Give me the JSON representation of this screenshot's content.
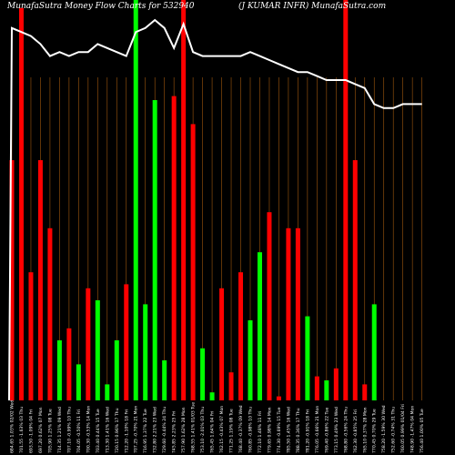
{
  "header": {
    "left": "MunafaSutra  Money Flow  Charts for 532940",
    "right": "(J KUMAR INFR) MunafaSutra.com"
  },
  "chart_data": {
    "type": "bar",
    "title": "MunafaSutra  Money Flow  Charts for 532940",
    "subtitle": "(J KUMAR INFR) MunafaSutra.com",
    "ylim": [
      0,
      100
    ],
    "grid": false,
    "colors": {
      "up": "#00ff00",
      "down": "#ff0000",
      "line": "#ffffff",
      "gridline": "#a0580e",
      "background": "#000000"
    },
    "categories": [
      "684.65 1.03% 02/02 Wed",
      "701.55 -1.63% 03 Thu",
      "693.50 -1.09% 04 Fri",
      "697.20 0.62% 07 Mon",
      "705.90 1.25% 08 Tue",
      "714.35 1.21% 09 Wed",
      "707.10 -0.99% 10 Thu",
      "704.05 -0.50% 11 Fri",
      "700.30 -0.53% 14 Mon",
      "703.40 0.44% 15 Tue",
      "713.30 1.41% 16 Wed",
      "720.15 0.96% 17 Thu",
      "712.20 -1.10% 18 Fri",
      "707.25 -0.70% 21 Mon",
      "716.95 1.37% 22 Tue",
      "732.80 2.21% 23 Wed",
      "729.60 -0.44% 24 Thu",
      "745.85 2.23% 25 Fri",
      "757.90 1.62% 28 Mon",
      "768.55 1.41% 01/03 Tue",
      "753.10 -2.01% 03 Thu",
      "765.45 1.64% 04 Fri",
      "762.15 -0.43% 07 Mon",
      "771.25 1.19% 08 Tue",
      "768.40 -0.37% 09 Wed",
      "760.85 -0.98% 10 Thu",
      "772.10 1.48% 11 Fri",
      "779.65 0.98% 14 Mon",
      "774.30 -0.69% 15 Tue",
      "785.50 1.45% 16 Wed",
      "788.35 0.36% 17 Thu",
      "781.20 -0.91% 18 Fri",
      "776.05 -0.66% 21 Mon",
      "769.40 -0.86% 22 Tue",
      "773.15 0.49% 23 Wed",
      "768.80 -0.56% 24 Thu",
      "762.30 -0.85% 25 Fri",
      "765.10 0.37% 28 Mon",
      "770.45 0.70% 29 Tue",
      "758.20 -1.59% 30 Wed",
      "752.60 -0.74% 31 Thu",
      "760.05 0.99% 01/04 Fri",
      "748.90 -1.47% 04 Mon",
      "756.40 1.00% 05 Tue"
    ],
    "series": [
      {
        "values": [
          60,
          98,
          32,
          60,
          43,
          15,
          18,
          9,
          28,
          25,
          4,
          15,
          29,
          100,
          24,
          75,
          10,
          76,
          100,
          69,
          13,
          2,
          28,
          7,
          32,
          20,
          37,
          47,
          1,
          43,
          43,
          21,
          6,
          5,
          8,
          100,
          60,
          4,
          24,
          0,
          0,
          0,
          0,
          0
        ],
        "colors": [
          "red",
          "red",
          "red",
          "red",
          "red",
          "green",
          "red",
          "green",
          "red",
          "green",
          "green",
          "green",
          "red",
          "green",
          "green",
          "green",
          "green",
          "red",
          "red",
          "red",
          "green",
          "green",
          "red",
          "red",
          "red",
          "green",
          "green",
          "red",
          "red",
          "red",
          "red",
          "green",
          "red",
          "green",
          "red",
          "red",
          "red",
          "red",
          "green",
          "red",
          "red",
          "red",
          "red",
          "red"
        ]
      },
      {
        "values": [
          93,
          92,
          91,
          89,
          86,
          87,
          86,
          87,
          87,
          89,
          88,
          87,
          86,
          92,
          93,
          95,
          93,
          88,
          94,
          87,
          86,
          86,
          86,
          86,
          86,
          87,
          86,
          85,
          84,
          83,
          82,
          82,
          81,
          80,
          80,
          80,
          79,
          78,
          74,
          73,
          73,
          74,
          74,
          74
        ]
      }
    ]
  }
}
